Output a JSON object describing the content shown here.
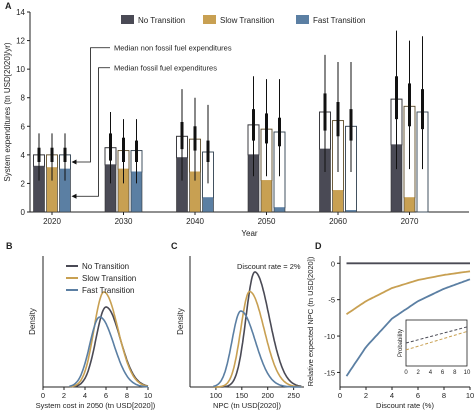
{
  "colors": {
    "no_transition": "#4a4a55",
    "slow_transition": "#c8a052",
    "fast_transition": "#5b7fa3",
    "axis": "#222222"
  },
  "chart_data": [
    {
      "panel_label": "A",
      "type": "bar",
      "xlabel": "Year",
      "ylabel": "System expenditures (tn USD[2020]/yr)",
      "ylim": [
        0,
        14
      ],
      "yticks": [
        0,
        2,
        4,
        6,
        8,
        10,
        12,
        14
      ],
      "categories": [
        "2020",
        "2030",
        "2040",
        "2050",
        "2060",
        "2070"
      ],
      "legend": [
        "No Transition",
        "Slow Transition",
        "Fast Transition"
      ],
      "legend_position": "top",
      "annotations": [
        "Median non fossil fuel expenditures",
        "Median fossil fuel expenditures"
      ],
      "series": [
        {
          "name": "No Transition",
          "fossil": [
            3.2,
            3.3,
            3.8,
            4.0,
            4.4,
            4.7
          ],
          "total": [
            4.0,
            4.5,
            5.3,
            6.1,
            7.0,
            7.9
          ],
          "ci_outer": [
            [
              2.2,
              5.5
            ],
            [
              2.0,
              7.0
            ],
            [
              2.2,
              8.6
            ],
            [
              2.5,
              9.5
            ],
            [
              2.8,
              11.0
            ],
            [
              3.0,
              12.7
            ]
          ],
          "ci_inner": [
            [
              3.5,
              4.5
            ],
            [
              3.6,
              5.5
            ],
            [
              4.4,
              6.3
            ],
            [
              5.0,
              7.2
            ],
            [
              5.7,
              8.3
            ],
            [
              6.5,
              9.5
            ]
          ]
        },
        {
          "name": "Slow Transition",
          "fossil": [
            3.1,
            3.0,
            2.8,
            2.2,
            1.5,
            1.0
          ],
          "total": [
            4.0,
            4.3,
            5.1,
            5.8,
            6.4,
            7.4
          ],
          "ci_outer": [
            [
              2.2,
              5.5
            ],
            [
              2.0,
              6.5
            ],
            [
              2.2,
              8.0
            ],
            [
              2.5,
              9.3
            ],
            [
              2.8,
              10.5
            ],
            [
              3.0,
              12.0
            ]
          ],
          "ci_inner": [
            [
              3.5,
              4.5
            ],
            [
              3.5,
              5.2
            ],
            [
              4.3,
              6.0
            ],
            [
              4.8,
              6.9
            ],
            [
              5.3,
              7.7
            ],
            [
              6.0,
              9.0
            ]
          ]
        },
        {
          "name": "Fast Transition",
          "fossil": [
            3.0,
            2.8,
            1.0,
            0.3,
            0.1,
            0.0
          ],
          "total": [
            4.0,
            4.3,
            4.2,
            5.6,
            6.0,
            7.0
          ],
          "ci_outer": [
            [
              2.2,
              5.5
            ],
            [
              2.0,
              6.5
            ],
            [
              2.0,
              7.5
            ],
            [
              2.5,
              9.3
            ],
            [
              2.8,
              10.5
            ],
            [
              3.0,
              12.3
            ]
          ],
          "ci_inner": [
            [
              3.5,
              4.5
            ],
            [
              3.5,
              5.0
            ],
            [
              3.5,
              5.0
            ],
            [
              4.6,
              6.6
            ],
            [
              5.0,
              7.2
            ],
            [
              5.8,
              8.6
            ]
          ]
        }
      ]
    },
    {
      "panel_label": "B",
      "type": "line",
      "xlabel": "System cost in 2050 (tn USD[2020])",
      "ylabel": "Density",
      "xlim": [
        0,
        10
      ],
      "xticks": [
        0,
        2,
        4,
        6,
        8,
        10
      ],
      "legend": [
        "No Transition",
        "Slow Transition",
        "Fast Transition"
      ],
      "series": [
        {
          "name": "No Transition",
          "peak_x": 6.0,
          "peak_density": 0.8
        },
        {
          "name": "Slow Transition",
          "peak_x": 5.8,
          "peak_density": 0.95
        },
        {
          "name": "Fast Transition",
          "peak_x": 5.4,
          "peak_density": 0.7
        }
      ]
    },
    {
      "panel_label": "C",
      "type": "line",
      "xlabel": "NPC (tn USD[2020])",
      "ylabel": "Density",
      "xlim": [
        50,
        270
      ],
      "xticks": [
        100,
        150,
        200,
        250
      ],
      "annotations": [
        "Discount rate = 2%"
      ],
      "series": [
        {
          "name": "No Transition",
          "peak_x": 175,
          "peak_density": 1.0
        },
        {
          "name": "Slow Transition",
          "peak_x": 165,
          "peak_density": 0.83
        },
        {
          "name": "Fast Transition",
          "peak_x": 148,
          "peak_density": 0.66
        }
      ]
    },
    {
      "panel_label": "D",
      "type": "line",
      "xlabel": "Discount rate (%)",
      "ylabel": "Relative expected NPC (tn USD[2020])",
      "xlim": [
        0,
        10
      ],
      "ylim": [
        -17,
        1
      ],
      "xticks": [
        0,
        2,
        4,
        6,
        8,
        10
      ],
      "yticks": [
        0,
        -5,
        -10,
        -15
      ],
      "series": [
        {
          "name": "No Transition",
          "x": [
            0.5,
            2,
            4,
            6,
            8,
            10
          ],
          "y": [
            0,
            0,
            0,
            0,
            0,
            0
          ]
        },
        {
          "name": "Slow Transition",
          "x": [
            0.5,
            2,
            4,
            6,
            8,
            10
          ],
          "y": [
            -7.0,
            -5.2,
            -3.4,
            -2.3,
            -1.6,
            -1.1
          ]
        },
        {
          "name": "Fast Transition",
          "x": [
            0.5,
            2,
            4,
            6,
            8,
            10
          ],
          "y": [
            -15.5,
            -11.5,
            -7.6,
            -5.2,
            -3.5,
            -2.2
          ]
        }
      ],
      "inset": {
        "ylabel": "Probability",
        "xticks": [
          0,
          2,
          4,
          6,
          8,
          10
        ],
        "series": [
          {
            "name": "No Transition",
            "x": [
              0,
              10
            ],
            "y": [
              0.5,
              0.85
            ]
          },
          {
            "name": "Slow Transition",
            "x": [
              0,
              10
            ],
            "y": [
              0.35,
              0.75
            ]
          }
        ]
      }
    }
  ]
}
